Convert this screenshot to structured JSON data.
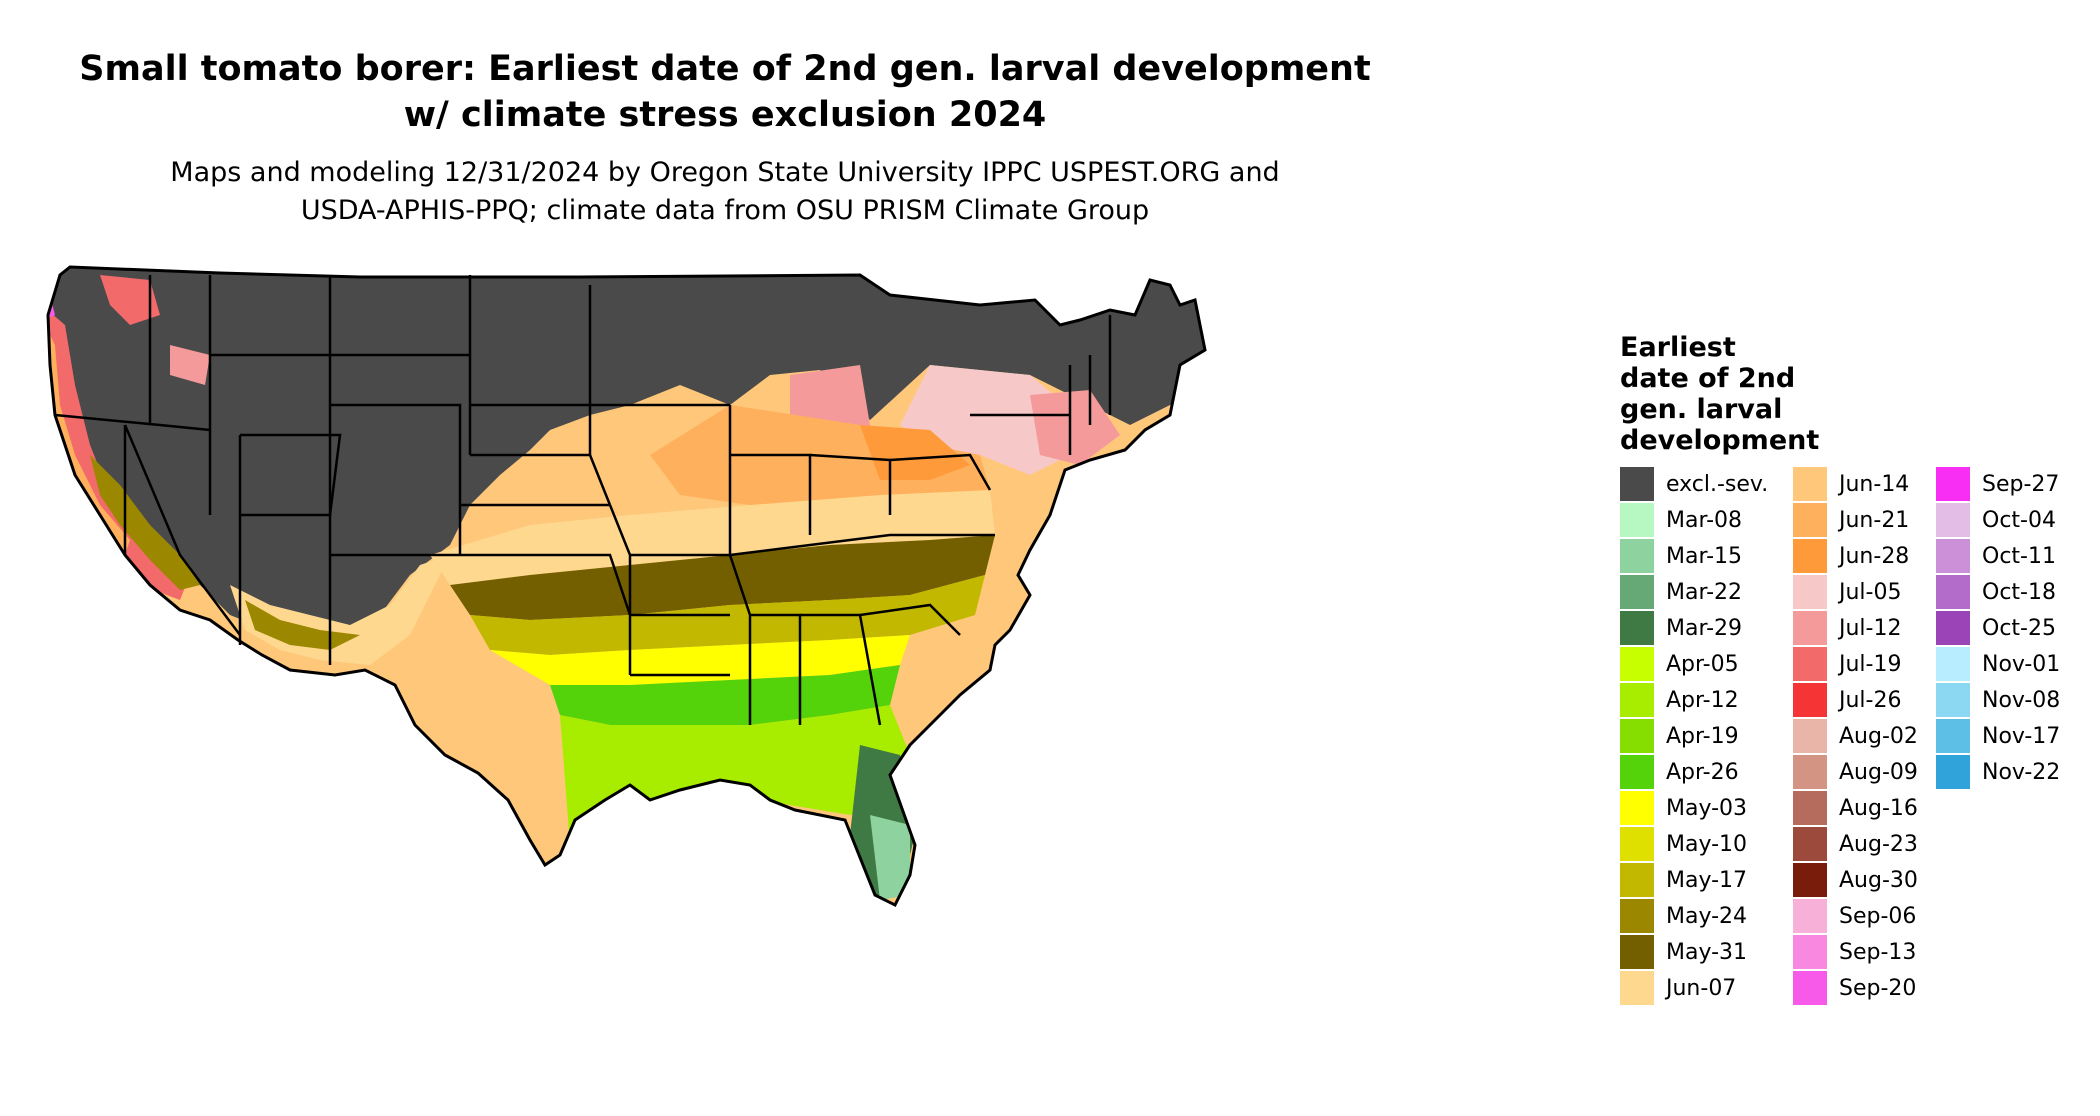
{
  "title_line1": "Small tomato borer: Earliest date of 2nd gen. larval development",
  "title_line2": "w/ climate stress exclusion 2024",
  "subtitle_line1": "Maps and modeling 12/31/2024 by Oregon State University IPPC USPEST.ORG and",
  "subtitle_line2": "USDA-APHIS-PPQ; climate data from OSU PRISM Climate Group",
  "legend": {
    "title_lines": [
      "Earliest",
      "date of 2nd",
      "gen. larval",
      "development"
    ],
    "columns": [
      [
        {
          "label": "excl.-sev.",
          "color": "#4a4a4a"
        },
        {
          "label": "Mar-08",
          "color": "#b6f7c2"
        },
        {
          "label": "Mar-15",
          "color": "#8ed39f"
        },
        {
          "label": "Mar-22",
          "color": "#66a876"
        },
        {
          "label": "Mar-29",
          "color": "#3f7a44"
        },
        {
          "label": "Apr-05",
          "color": "#c8ff00"
        },
        {
          "label": "Apr-12",
          "color": "#a8ec00"
        },
        {
          "label": "Apr-19",
          "color": "#86de00"
        },
        {
          "label": "Apr-26",
          "color": "#54d20a"
        },
        {
          "label": "May-03",
          "color": "#ffff00"
        },
        {
          "label": "May-10",
          "color": "#dfe000"
        },
        {
          "label": "May-17",
          "color": "#c2b800"
        },
        {
          "label": "May-24",
          "color": "#9c8700"
        },
        {
          "label": "May-31",
          "color": "#735e00"
        },
        {
          "label": "Jun-07",
          "color": "#ffd890"
        }
      ],
      [
        {
          "label": "Jun-14",
          "color": "#ffc77a"
        },
        {
          "label": "Jun-21",
          "color": "#ffb05c"
        },
        {
          "label": "Jun-28",
          "color": "#ff9a3a"
        },
        {
          "label": "Jul-05",
          "color": "#f6c8c8"
        },
        {
          "label": "Jul-12",
          "color": "#f49a9a"
        },
        {
          "label": "Jul-19",
          "color": "#f26a6a"
        },
        {
          "label": "Jul-26",
          "color": "#f53535"
        },
        {
          "label": "Aug-02",
          "color": "#e8b5a8"
        },
        {
          "label": "Aug-09",
          "color": "#d49484"
        },
        {
          "label": "Aug-16",
          "color": "#b56c5c"
        },
        {
          "label": "Aug-23",
          "color": "#9b4a3c"
        },
        {
          "label": "Aug-30",
          "color": "#7a1c0c"
        },
        {
          "label": "Sep-06",
          "color": "#f7b0d8"
        },
        {
          "label": "Sep-13",
          "color": "#f888e0"
        },
        {
          "label": "Sep-20",
          "color": "#f75ae8"
        }
      ],
      [
        {
          "label": "Sep-27",
          "color": "#f92ef5"
        },
        {
          "label": "Oct-04",
          "color": "#e3bde6"
        },
        {
          "label": "Oct-11",
          "color": "#cc90d8"
        },
        {
          "label": "Oct-18",
          "color": "#b46ccb"
        },
        {
          "label": "Oct-25",
          "color": "#9a44b8"
        },
        {
          "label": "Nov-01",
          "color": "#b8ecff"
        },
        {
          "label": "Nov-08",
          "color": "#8cd8f2"
        },
        {
          "label": "Nov-17",
          "color": "#5dbfe6"
        },
        {
          "label": "Nov-22",
          "color": "#2fa3da"
        }
      ]
    ]
  }
}
